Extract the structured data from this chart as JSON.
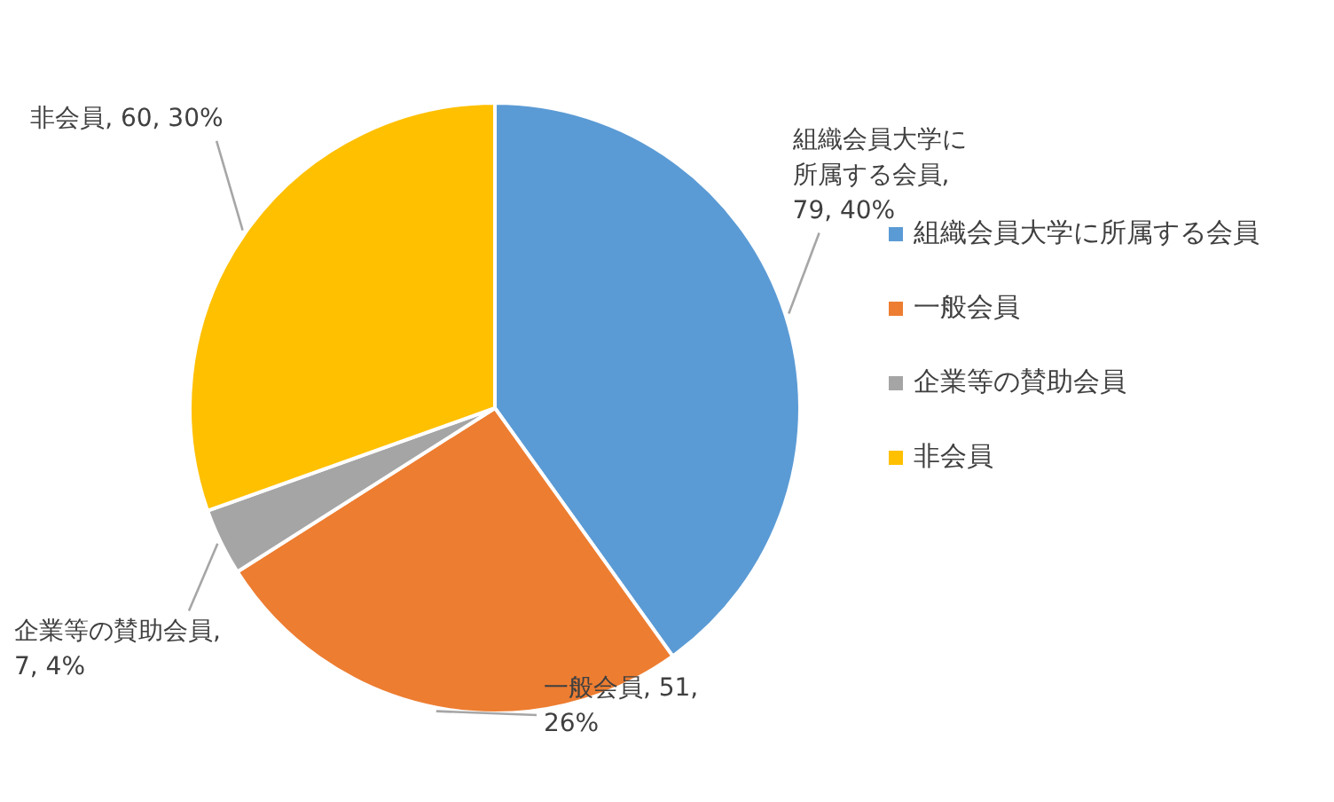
{
  "chart_data": {
    "type": "pie",
    "categories": [
      "組織会員大学に所属する会員",
      "一般会員",
      "企業等の賛助会員",
      "非会員"
    ],
    "values": [
      79,
      51,
      7,
      60
    ],
    "value_labels": [
      "組織会員大学に所属する会員, 79, 40%",
      "一般会員, 51, 26%",
      "企業等の賛助会員, 7, 4%",
      "非会員, 60, 30%"
    ],
    "colors": [
      "#5b9bd5",
      "#ed7d31",
      "#a5a5a5",
      "#ffc000"
    ],
    "legend": "right"
  }
}
